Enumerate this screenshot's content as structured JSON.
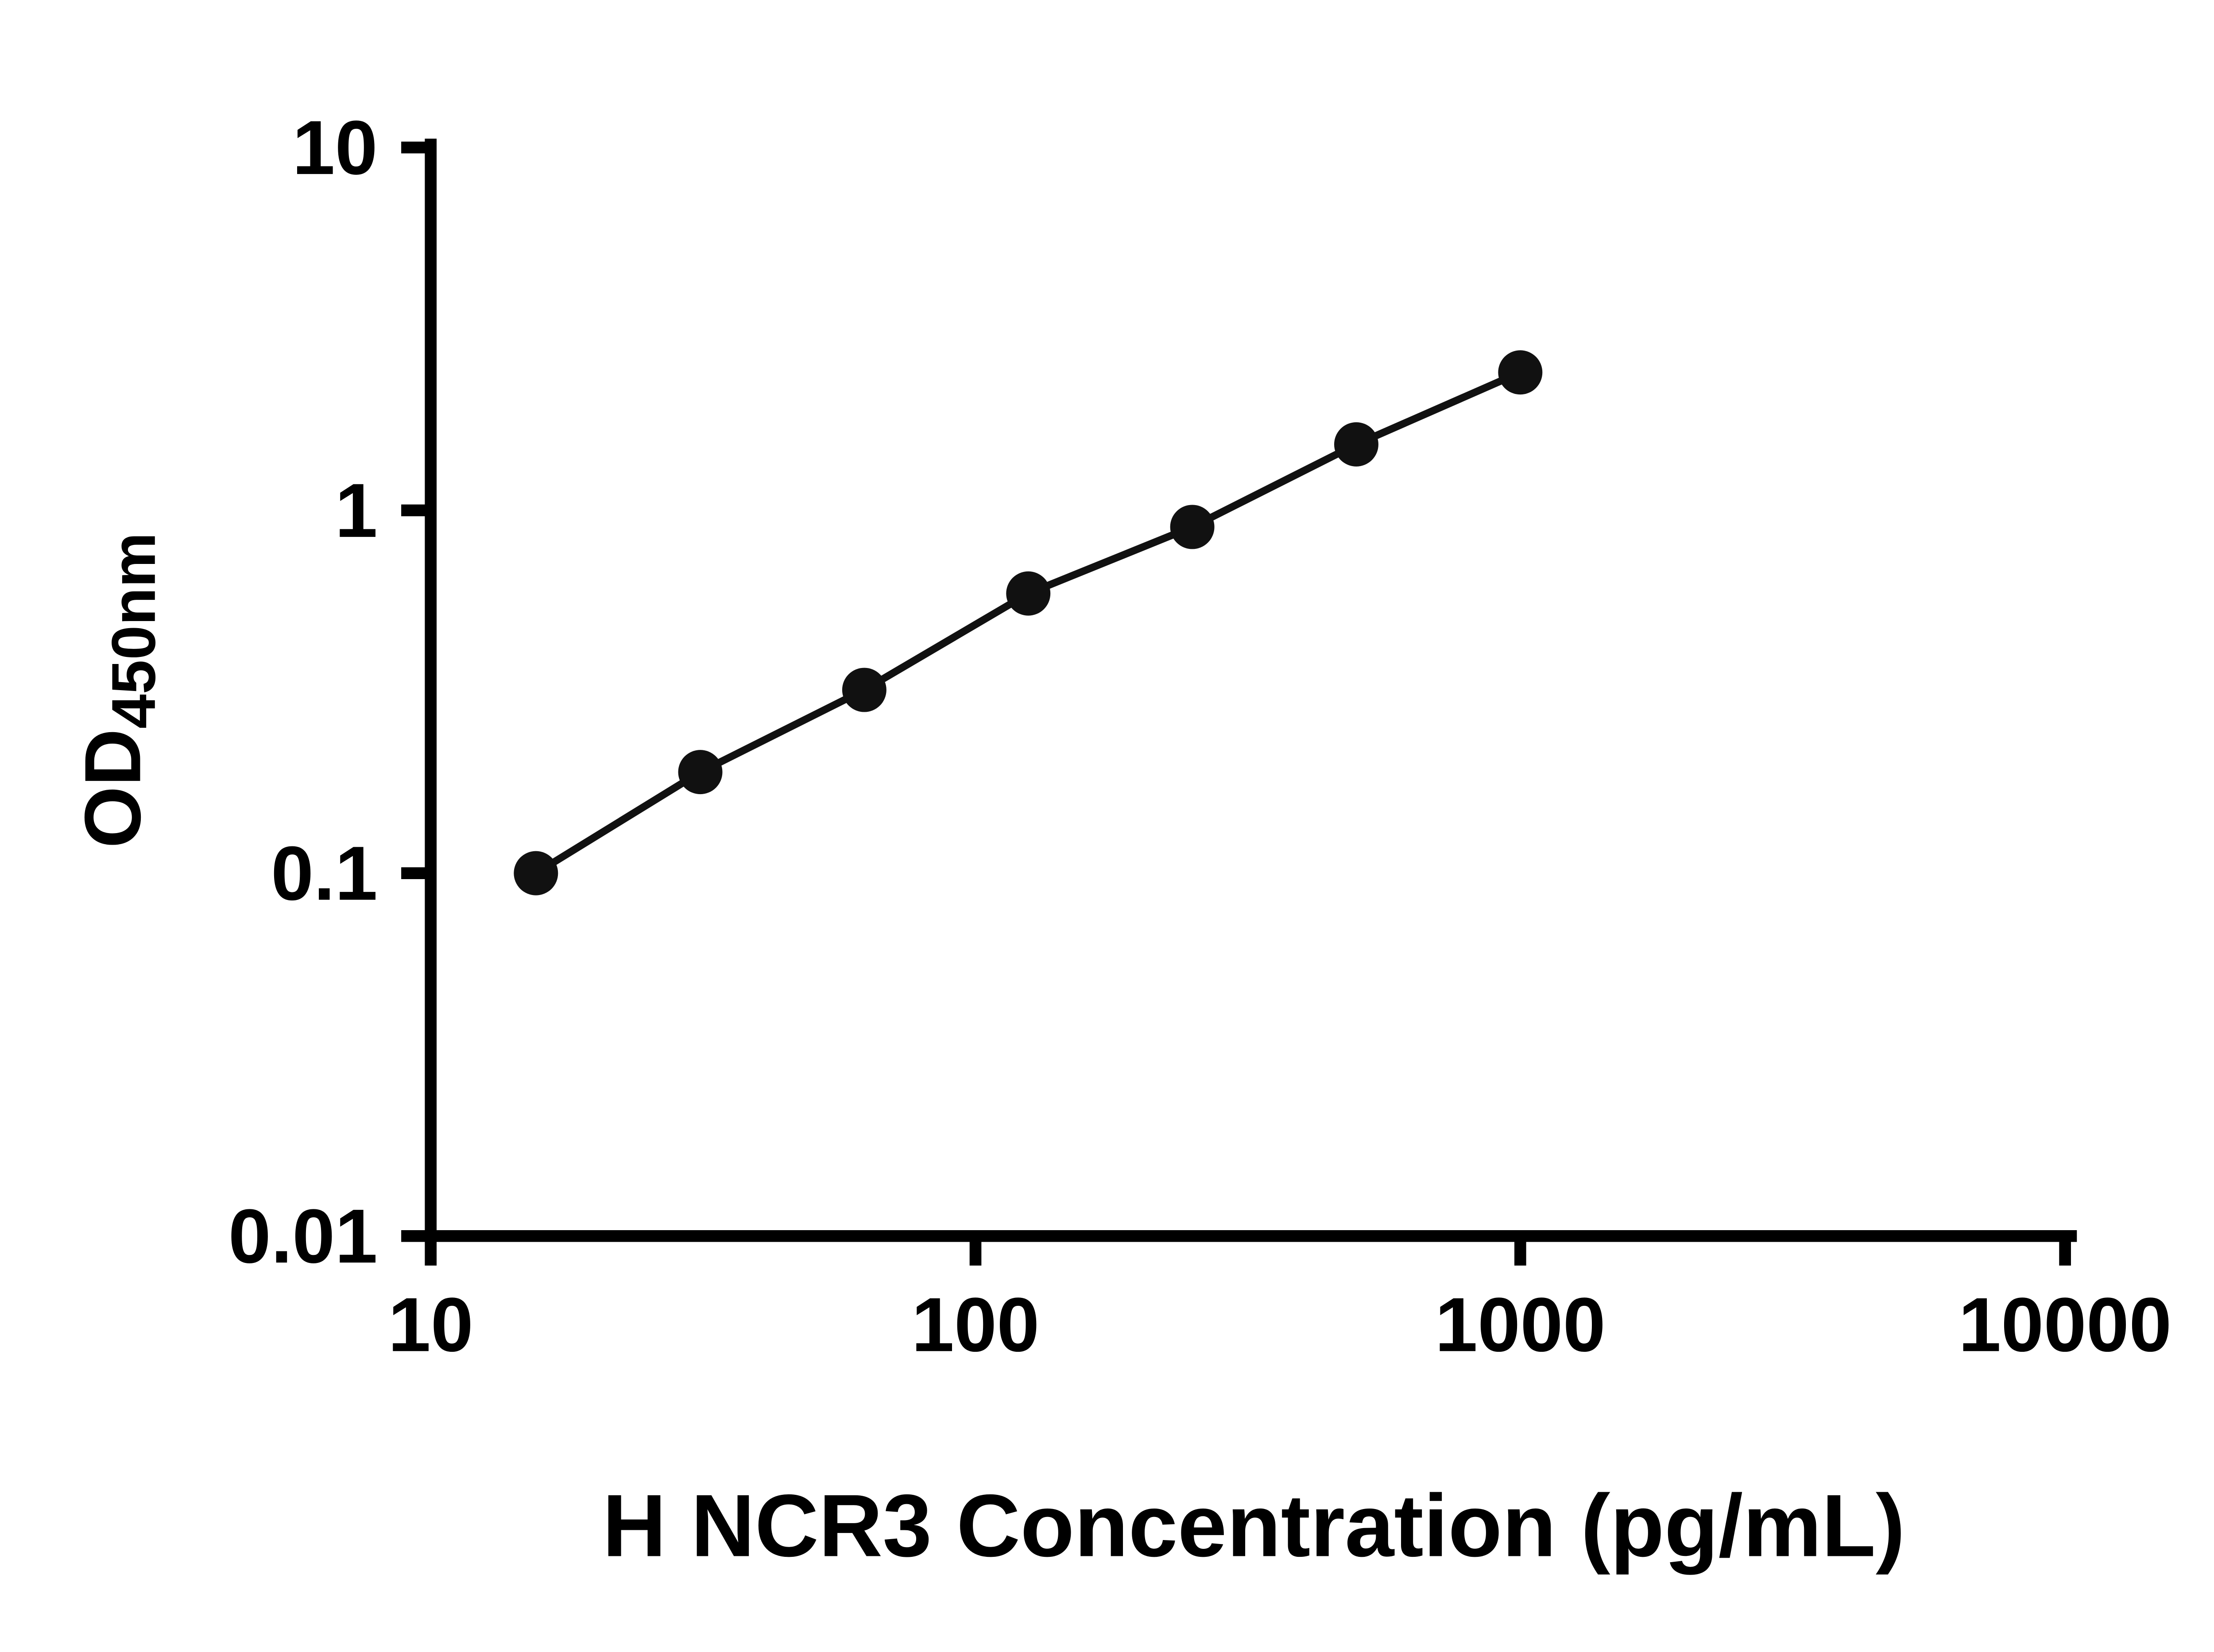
{
  "chart_data": {
    "type": "scatter",
    "subtype": "scatter-with-connecting-line",
    "title": "",
    "xlabel": "H NCR3 Concentration (pg/mL)",
    "ylabel_main": "OD",
    "ylabel_sub": "450nm",
    "x_scale": "log",
    "y_scale": "log",
    "xlim": [
      10,
      10000
    ],
    "ylim": [
      0.01,
      10
    ],
    "x_ticks": [
      10,
      100,
      1000,
      10000
    ],
    "x_tick_labels": [
      "10",
      "100",
      "1000",
      "10000"
    ],
    "y_ticks": [
      0.01,
      0.1,
      1,
      10
    ],
    "y_tick_labels": [
      "0.01",
      "0.1",
      "1",
      "10"
    ],
    "x": [
      15.6,
      31.25,
      62.5,
      125,
      250,
      500,
      1000
    ],
    "y": [
      0.1,
      0.19,
      0.32,
      0.59,
      0.9,
      1.52,
      2.4
    ],
    "grid": false,
    "legend": "none",
    "axis_color": "#000000",
    "marker_color": "#111111",
    "line_color": "#111111"
  }
}
